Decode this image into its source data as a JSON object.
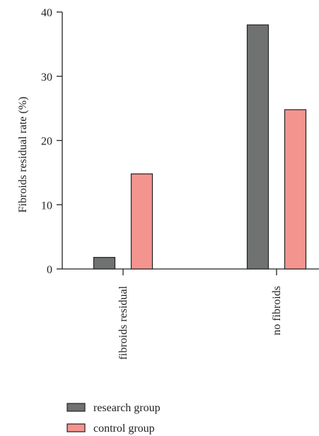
{
  "chart_data": {
    "type": "bar",
    "title": "",
    "xlabel": "",
    "ylabel": "Fibroids residual rate (%)",
    "ylim": [
      0,
      40
    ],
    "yticks": [
      "0",
      "10",
      "20",
      "30",
      "40"
    ],
    "grid": false,
    "legend_position": "bottom-left",
    "categories": [
      "fibroids residual",
      "no fibroids"
    ],
    "series": [
      {
        "name": "research group",
        "values": [
          1.8,
          38
        ],
        "color": "#6f7271"
      },
      {
        "name": "control group",
        "values": [
          14.8,
          24.8
        ],
        "color": "#f4948f"
      }
    ]
  }
}
